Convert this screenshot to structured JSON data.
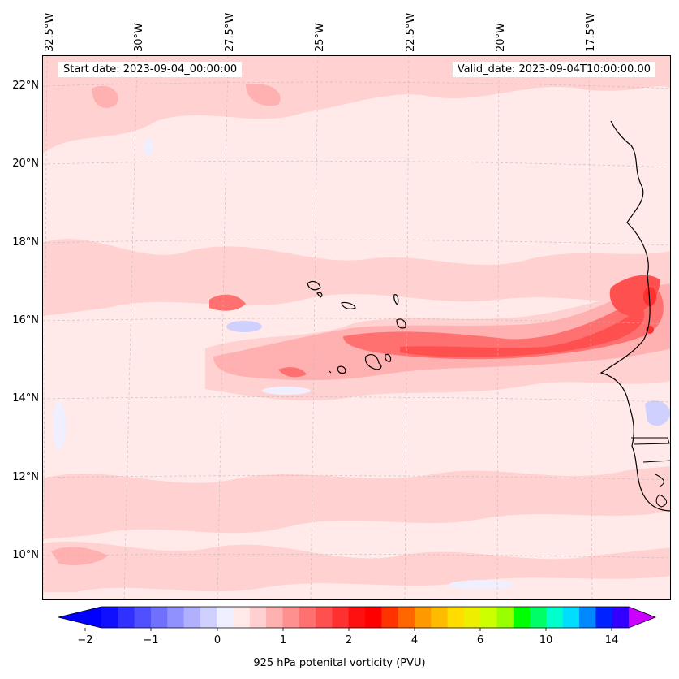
{
  "map": {
    "start_date": "Start date: 2023-09-04_00:00:00",
    "valid_date": "Valid_date: 2023-09-04T10:00:00.00",
    "lon_labels": [
      "32.5°W",
      "30°W",
      "27.5°W",
      "25°W",
      "22.5°W",
      "20°W",
      "17.5°W"
    ],
    "lat_labels": [
      "22°N",
      "20°N",
      "18°N",
      "16°N",
      "14°N",
      "12°N",
      "10°N"
    ],
    "background_color": "#ffe9e9",
    "coastline_color": "#000000",
    "gridline_color": "#bdbdbd"
  },
  "colorbar": {
    "label": "925 hPa potenital vorticity (PVU)",
    "tick_labels": [
      "−2",
      "−1",
      "0",
      "1",
      "2",
      "4",
      "6",
      "10",
      "14"
    ],
    "colors": [
      "#1010ff",
      "#3030ff",
      "#5050ff",
      "#7070ff",
      "#9090ff",
      "#b0b0ff",
      "#d0d0ff",
      "#efefff",
      "#ffe9e9",
      "#ffd0d0",
      "#ffb0b0",
      "#ff9090",
      "#ff7070",
      "#ff5050",
      "#ff3030",
      "#ff1010",
      "#ff0000",
      "#ff3300",
      "#ff6600",
      "#ff9900",
      "#ffbb00",
      "#ffdd00",
      "#eeee00",
      "#ccff00",
      "#99ff00",
      "#00ff00",
      "#00ff66",
      "#00ffcc",
      "#00ddff",
      "#0088ff",
      "#0022ff",
      "#3300ff",
      "#9900ff"
    ],
    "under_color": "#0000ff",
    "over_color": "#cc00ff"
  }
}
